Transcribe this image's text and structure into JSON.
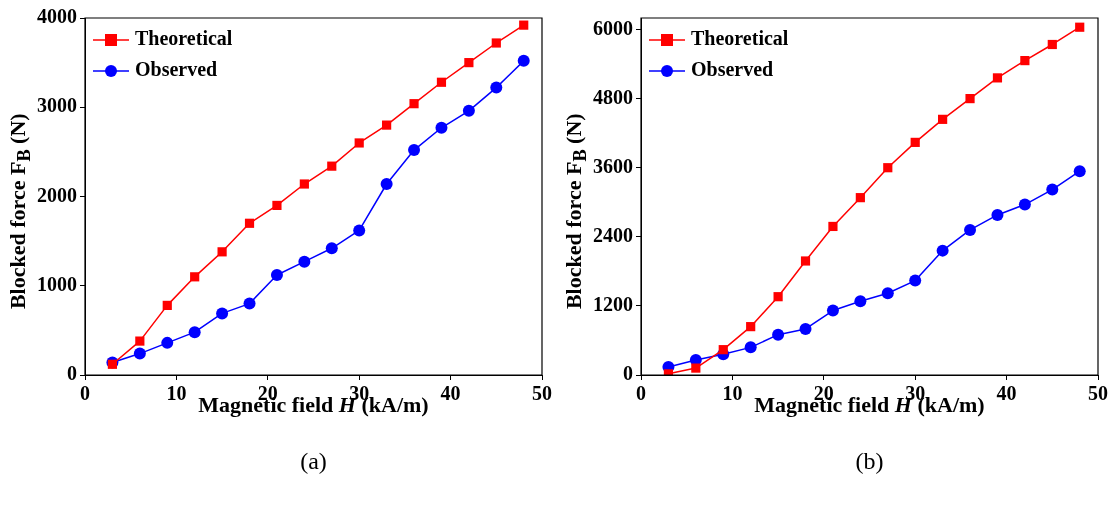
{
  "chart_data": [
    {
      "type": "line",
      "title": "(a)",
      "xlabel": "Magnetic field H (kA/m)",
      "ylabel": "Blocked force F$_{B}$ (N)",
      "x": [
        3,
        6,
        9,
        12,
        15,
        18,
        21,
        24,
        27,
        30,
        33,
        36,
        39,
        42,
        45,
        48
      ],
      "xlim": [
        0,
        50
      ],
      "xticks": [
        0,
        10,
        20,
        30,
        40,
        50
      ],
      "ylim": [
        0,
        4000
      ],
      "yticks": [
        0,
        1000,
        2000,
        3000,
        4000
      ],
      "legend": "top left",
      "grid": false,
      "line_style": "solid",
      "series": [
        {
          "name": "Theoretical",
          "color": "#ff0000",
          "marker": "square",
          "values": [
            120,
            380,
            780,
            1100,
            1380,
            1700,
            1900,
            2140,
            2340,
            2600,
            2800,
            3040,
            3280,
            3500,
            3720,
            3920
          ]
        },
        {
          "name": "Observed",
          "color": "#0000ff",
          "marker": "circle",
          "values": [
            140,
            240,
            360,
            480,
            690,
            800,
            1120,
            1270,
            1420,
            1620,
            2140,
            2520,
            2770,
            2960,
            3220,
            3520
          ]
        }
      ]
    },
    {
      "type": "line",
      "title": "(b)",
      "xlabel": "Magnetic field H (kA/m)",
      "ylabel": "Blocked force F$_{B}$ (N)",
      "x": [
        3,
        6,
        9,
        12,
        15,
        18,
        21,
        24,
        27,
        30,
        33,
        36,
        39,
        42,
        45,
        48
      ],
      "xlim": [
        0,
        50
      ],
      "xticks": [
        0,
        10,
        20,
        30,
        40,
        50
      ],
      "ylim": [
        0,
        6200
      ],
      "yticks": [
        0,
        1200,
        2400,
        3600,
        4800,
        6000
      ],
      "legend": "top left",
      "grid": false,
      "line_style": "solid",
      "series": [
        {
          "name": "Theoretical",
          "color": "#ff0000",
          "marker": "square",
          "values": [
            20,
            120,
            440,
            840,
            1360,
            1980,
            2580,
            3080,
            3600,
            4040,
            4440,
            4800,
            5160,
            5460,
            5740,
            6040
          ]
        },
        {
          "name": "Observed",
          "color": "#0000ff",
          "marker": "circle",
          "values": [
            140,
            260,
            360,
            480,
            700,
            800,
            1120,
            1280,
            1420,
            1640,
            2160,
            2520,
            2780,
            2960,
            3220,
            3540
          ]
        }
      ]
    }
  ]
}
